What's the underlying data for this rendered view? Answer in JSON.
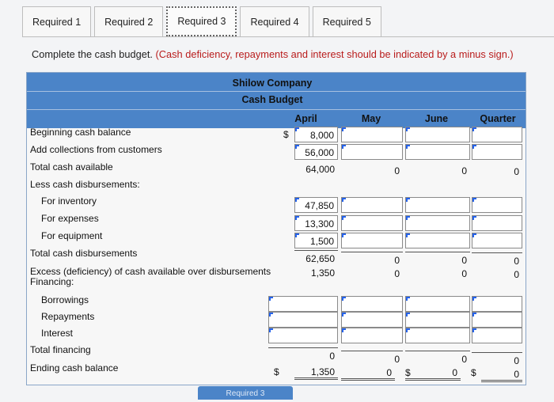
{
  "tabs": [
    "Required 1",
    "Required 2",
    "Required 3",
    "Required 4",
    "Required 5"
  ],
  "active_tab_index": 2,
  "instruction": {
    "main": "Complete the cash budget.",
    "note": "(Cash deficiency, repayments and interest should be indicated by a minus sign.)"
  },
  "budget": {
    "company": "Shilow Company",
    "title": "Cash Budget",
    "columns": [
      "April",
      "May",
      "June",
      "Quarter"
    ],
    "rows": {
      "beginning": "Beginning cash balance",
      "collections": "Add collections from customers",
      "total_available": "Total cash available",
      "less_disb": "Less cash disbursements:",
      "inventory": "For inventory",
      "expenses": "For expenses",
      "equipment": "For equipment",
      "total_disb": "Total cash disbursements",
      "excess": "Excess (deficiency) of cash available over disbursements",
      "financing": "Financing:",
      "borrowings": "Borrowings",
      "repayments": "Repayments",
      "interest": "Interest",
      "total_financing": "Total financing",
      "ending": "Ending cash balance"
    },
    "values": {
      "april": {
        "beginning": "8,000",
        "collections": "56,000",
        "total_available": "64,000",
        "inventory": "47,850",
        "expenses": "13,300",
        "equipment": "1,500",
        "total_disb": "62,650",
        "excess": "1,350",
        "total_financing": "0",
        "ending": "1,350"
      },
      "may": {
        "total_available": "0",
        "total_disb": "0",
        "excess": "0",
        "total_financing": "0",
        "ending": "0"
      },
      "june": {
        "total_available": "0",
        "total_disb": "0",
        "excess": "0",
        "total_financing": "0",
        "ending": "0"
      },
      "quarter": {
        "total_available": "0",
        "total_disb": "0",
        "excess": "0",
        "total_financing": "0",
        "ending": "0"
      }
    },
    "currency_symbol": "$"
  },
  "footer_button": "Required 3"
}
